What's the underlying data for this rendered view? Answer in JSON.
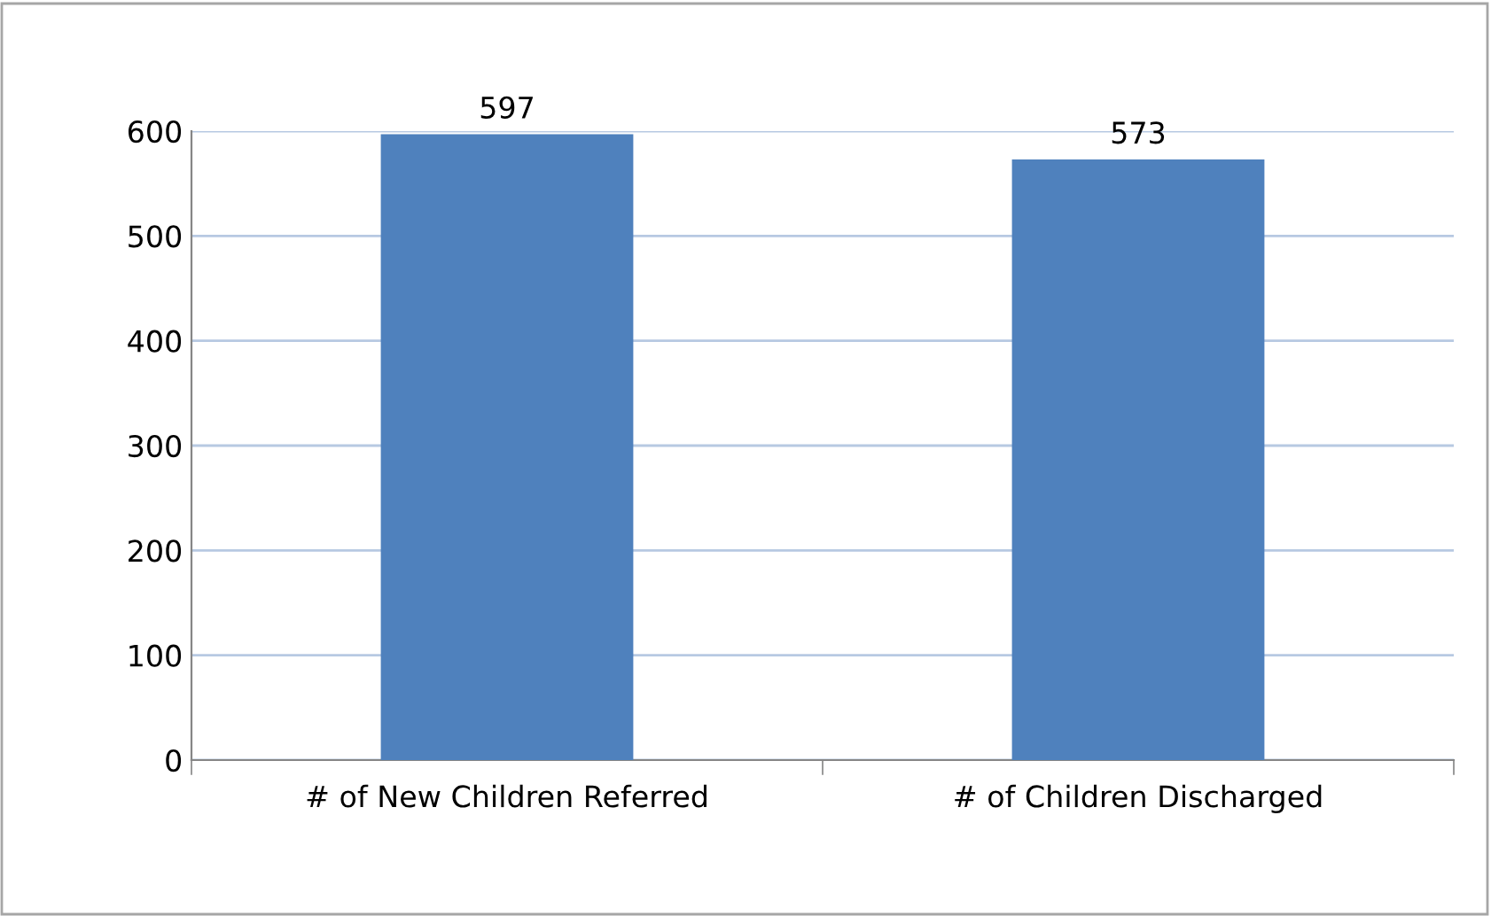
{
  "chart_data": {
    "type": "bar",
    "categories": [
      "# of New Children Referred",
      "# of Children Discharged"
    ],
    "values": [
      597,
      573
    ],
    "color": "#4f81bd",
    "ylim": [
      0,
      600
    ],
    "yticks": [
      0,
      100,
      200,
      300,
      400,
      500,
      600
    ],
    "grid": "y",
    "data_labels": true
  }
}
